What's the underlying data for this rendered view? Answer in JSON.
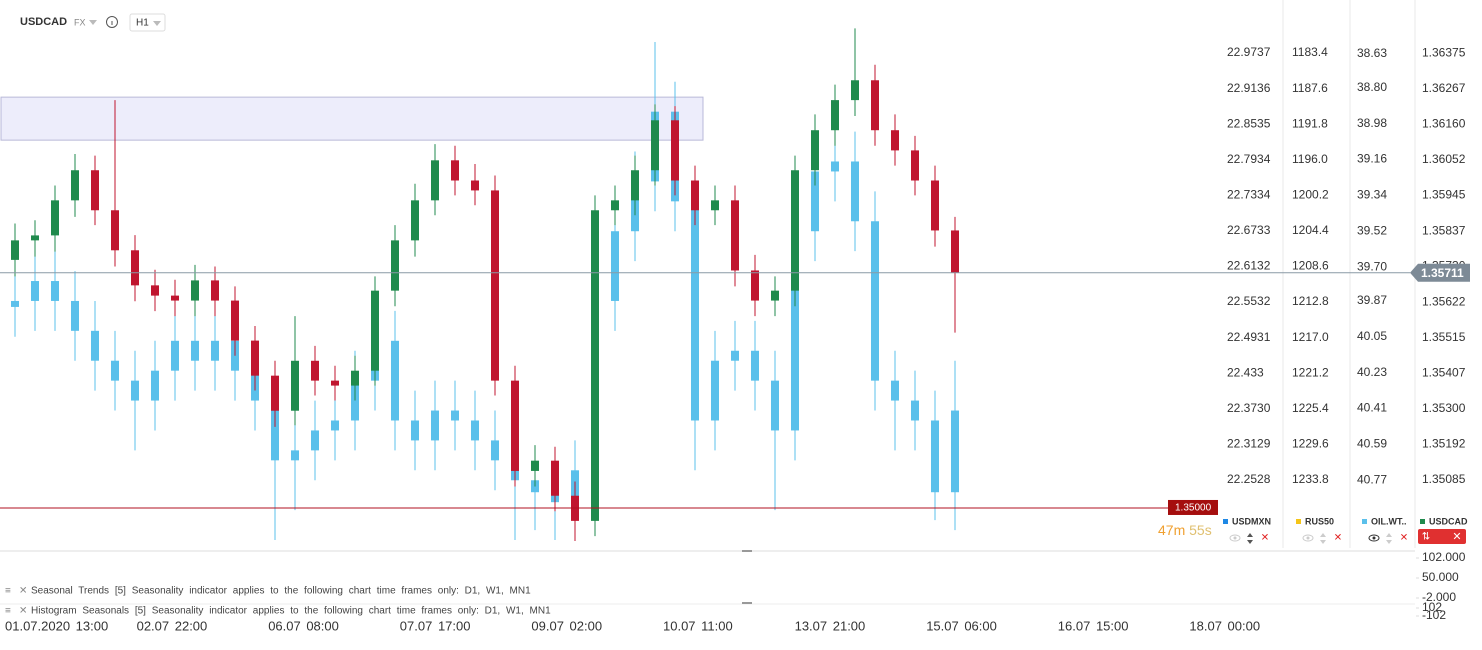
{
  "chart_data": {
    "type": "candlestick",
    "title": "USDCAD",
    "market": "FX",
    "timeframe": "H1",
    "x_labels": [
      "01.07.2020  13:00",
      "02.07  22:00",
      "06.07  08:00",
      "07.07  17:00",
      "09.07  02:00",
      "10.07  11:00",
      "13.07  21:00",
      "15.07  06:00",
      "16.07  15:00",
      "18.07  00:00"
    ],
    "axes": [
      {
        "name": "USDMXN",
        "color": "#1e88e5",
        "ylim": [
          22.1377,
          23.016
        ],
        "yticks": [
          22.9737,
          22.9136,
          22.8535,
          22.7934,
          22.7334,
          22.6733,
          22.6132,
          22.5532,
          22.4931,
          22.433,
          {
            "value": 22.373,
            "label": "22.3730"
          },
          22.3129,
          22.2528
        ]
      },
      {
        "name": "RUS50",
        "color": "#f5c518",
        "ylim": [
          1241.85,
          1180.44
        ],
        "yticks": [
          1183.4,
          1187.6,
          1191.8,
          {
            "value": 1196,
            "label": "1196.0"
          },
          1200.2,
          1204.4,
          1208.6,
          1212.8,
          {
            "value": 1217,
            "label": "1217.0"
          },
          1221.2,
          1225.4,
          1229.6,
          1233.8
        ]
      },
      {
        "name": "OIL.WT..",
        "color": "#5bc0eb",
        "ylim": [
          41.11,
          38.5
        ],
        "yticks": [
          38.63,
          {
            "value": 38.8,
            "label": "38.80"
          },
          38.98,
          39.16,
          39.34,
          39.52,
          {
            "value": 39.7,
            "label": "39.70"
          },
          39.87,
          40.05,
          40.23,
          40.41,
          40.59,
          40.77
        ]
      },
      {
        "name": "USDCAD",
        "color": "#1f8a4c",
        "ylim": [
          1.34879,
          1.36451
        ],
        "yticks": [
          1.36375,
          1.36267,
          {
            "value": 1.3616,
            "label": "1.36160"
          },
          1.36052,
          1.35945,
          1.35837,
          {
            "value": 1.3573,
            "label": "1.35730"
          },
          1.35622,
          1.35515,
          1.35407,
          {
            "value": 1.353,
            "label": "1.35300"
          },
          1.35192,
          1.35085
        ]
      }
    ],
    "series": [
      {
        "axis": 2,
        "color": "#5bc0eb",
        "ohlc": [
          [
            39.9,
            40.05,
            39.72,
            39.87
          ],
          [
            39.87,
            40.02,
            39.62,
            39.77
          ],
          [
            39.77,
            40.02,
            39.62,
            39.87
          ],
          [
            39.87,
            40.17,
            39.72,
            40.02
          ],
          [
            40.02,
            40.32,
            39.87,
            40.17
          ],
          [
            40.17,
            40.42,
            40.02,
            40.27
          ],
          [
            40.27,
            40.62,
            40.12,
            40.37
          ],
          [
            40.37,
            40.52,
            40.07,
            40.22
          ],
          [
            40.22,
            40.37,
            39.92,
            40.07
          ],
          [
            40.07,
            40.32,
            39.92,
            40.17
          ],
          [
            40.17,
            40.32,
            39.92,
            40.07
          ],
          [
            40.07,
            40.37,
            39.92,
            40.22
          ],
          [
            40.22,
            40.52,
            40.07,
            40.37
          ],
          [
            40.37,
            41.07,
            40.22,
            40.67
          ],
          [
            40.67,
            40.92,
            40.47,
            40.62
          ],
          [
            40.62,
            40.77,
            40.37,
            40.52
          ],
          [
            40.52,
            40.67,
            40.32,
            40.47
          ],
          [
            40.47,
            40.62,
            40.12,
            40.27
          ],
          [
            40.27,
            40.42,
            39.92,
            40.07
          ],
          [
            40.07,
            40.62,
            39.92,
            40.47
          ],
          [
            40.47,
            40.72,
            40.32,
            40.57
          ],
          [
            40.57,
            40.72,
            40.27,
            40.42
          ],
          [
            40.42,
            40.62,
            40.27,
            40.47
          ],
          [
            40.47,
            40.72,
            40.32,
            40.57
          ],
          [
            40.57,
            40.82,
            40.42,
            40.67
          ],
          [
            40.67,
            41.07,
            40.52,
            40.77
          ],
          [
            40.77,
            41.02,
            40.62,
            40.83
          ],
          [
            40.83,
            41.07,
            40.68,
            40.88
          ],
          [
            40.88,
            41.03,
            40.57,
            40.72
          ],
          [
            40.72,
            40.87,
            39.72,
            39.87
          ],
          [
            39.87,
            40.02,
            39.37,
            39.52
          ],
          [
            39.52,
            39.67,
            39.12,
            39.27
          ],
          [
            39.27,
            39.42,
            38.57,
            38.92
          ],
          [
            38.92,
            39.52,
            38.77,
            39.37
          ],
          [
            39.37,
            40.72,
            39.22,
            40.47
          ],
          [
            40.47,
            40.62,
            40.02,
            40.17
          ],
          [
            40.17,
            40.32,
            39.97,
            40.12
          ],
          [
            40.12,
            40.42,
            39.97,
            40.27
          ],
          [
            40.27,
            40.92,
            40.12,
            40.52
          ],
          [
            40.52,
            40.67,
            39.37,
            39.52
          ],
          [
            39.52,
            39.67,
            39.07,
            39.22
          ],
          [
            39.22,
            39.37,
            39.02,
            39.17
          ],
          [
            39.17,
            39.62,
            39.02,
            39.47
          ],
          [
            39.47,
            40.42,
            39.32,
            40.27
          ],
          [
            40.27,
            40.62,
            40.12,
            40.37
          ],
          [
            40.37,
            40.62,
            40.22,
            40.47
          ],
          [
            40.47,
            40.97,
            40.32,
            40.83
          ],
          [
            40.83,
            41.02,
            40.17,
            40.42
          ]
        ]
      },
      {
        "axis": 3,
        "up_color": "#1f8a4c",
        "down_color": "#c0152f",
        "ohlc": [
          [
            1.3575,
            1.3586,
            1.357,
            1.35809
          ],
          [
            1.35809,
            1.3587,
            1.3576,
            1.35824
          ],
          [
            1.35824,
            1.35975,
            1.35775,
            1.3593
          ],
          [
            1.3593,
            1.3607,
            1.3588,
            1.36021
          ],
          [
            1.36021,
            1.36065,
            1.35855,
            1.359
          ],
          [
            1.359,
            1.36233,
            1.3573,
            1.35779
          ],
          [
            1.35779,
            1.35825,
            1.35625,
            1.35673
          ],
          [
            1.35673,
            1.3572,
            1.35595,
            1.35642
          ],
          [
            1.35642,
            1.3569,
            1.3558,
            1.35627
          ],
          [
            1.35627,
            1.35735,
            1.3558,
            1.35688
          ],
          [
            1.35688,
            1.3573,
            1.3558,
            1.35627
          ],
          [
            1.35627,
            1.3567,
            1.3546,
            1.35506
          ],
          [
            1.35506,
            1.3555,
            1.35355,
            1.354
          ],
          [
            1.354,
            1.35445,
            1.35245,
            1.35294
          ],
          [
            1.35294,
            1.3558,
            1.3525,
            1.35445
          ],
          [
            1.35445,
            1.3549,
            1.3534,
            1.35385
          ],
          [
            1.35385,
            1.3543,
            1.35325,
            1.3537
          ],
          [
            1.3537,
            1.3546,
            1.35325,
            1.35415
          ],
          [
            1.35415,
            1.357,
            1.3537,
            1.35657
          ],
          [
            1.35657,
            1.35855,
            1.3561,
            1.35809
          ],
          [
            1.35809,
            1.3598,
            1.3576,
            1.3593
          ],
          [
            1.3593,
            1.361,
            1.35885,
            1.36051
          ],
          [
            1.36051,
            1.36095,
            1.35945,
            1.3599
          ],
          [
            1.3599,
            1.3604,
            1.35915,
            1.3596
          ],
          [
            1.3596,
            1.36005,
            1.3534,
            1.35385
          ],
          [
            1.35385,
            1.3543,
            1.35065,
            1.35112
          ],
          [
            1.35112,
            1.3519,
            1.35065,
            1.35143
          ],
          [
            1.35143,
            1.35185,
            1.3499,
            1.35037
          ],
          [
            1.35037,
            1.3508,
            1.349,
            1.34961
          ],
          [
            1.34961,
            1.35945,
            1.34915,
            1.359
          ],
          [
            1.359,
            1.35975,
            1.35855,
            1.3593
          ],
          [
            1.3593,
            1.36065,
            1.35885,
            1.36021
          ],
          [
            1.36021,
            1.3622,
            1.35975,
            1.36172
          ],
          [
            1.36172,
            1.36215,
            1.35945,
            1.3599
          ],
          [
            1.3599,
            1.36035,
            1.35855,
            1.359
          ],
          [
            1.359,
            1.35975,
            1.35855,
            1.3593
          ],
          [
            1.3593,
            1.35975,
            1.3567,
            1.35718
          ],
          [
            1.35718,
            1.35765,
            1.3558,
            1.35627
          ],
          [
            1.35627,
            1.357,
            1.3558,
            1.35657
          ],
          [
            1.35657,
            1.36065,
            1.3561,
            1.36021
          ],
          [
            1.36021,
            1.3619,
            1.35975,
            1.36142
          ],
          [
            1.36142,
            1.3628,
            1.36095,
            1.36233
          ],
          [
            1.36233,
            1.3645,
            1.36185,
            1.36293
          ],
          [
            1.36293,
            1.3634,
            1.36095,
            1.36142
          ],
          [
            1.36142,
            1.3619,
            1.36035,
            1.36081
          ],
          [
            1.36081,
            1.36125,
            1.35945,
            1.3599
          ],
          [
            1.3599,
            1.36035,
            1.3579,
            1.35839
          ],
          [
            1.35839,
            1.3588,
            1.3553,
            1.35711
          ]
        ]
      }
    ],
    "zone": [
      1.36112,
      1.36242
    ],
    "last_price": 1.35711,
    "level": {
      "value": 1.35,
      "label": "1.35000"
    },
    "countdown": [
      "47m",
      "55s"
    ],
    "indicators": [
      {
        "label": "Seasonal Trends [5] Seasonality indicator applies to the following chart time frames only: D1, W1, MN1",
        "ylim": [
          -2,
          102
        ],
        "yticks": [
          {
            "value": 102,
            "label": "102.000"
          },
          {
            "value": 50,
            "label": "50.000"
          },
          {
            "value": -2,
            "label": "-2.000"
          }
        ]
      },
      {
        "label": "Histogram Seasonals [5] Seasonality indicator applies to the following chart time frames only: D1, W1, MN1",
        "ylim": [
          -102,
          102
        ],
        "yticks": [
          102,
          -102
        ]
      }
    ]
  }
}
